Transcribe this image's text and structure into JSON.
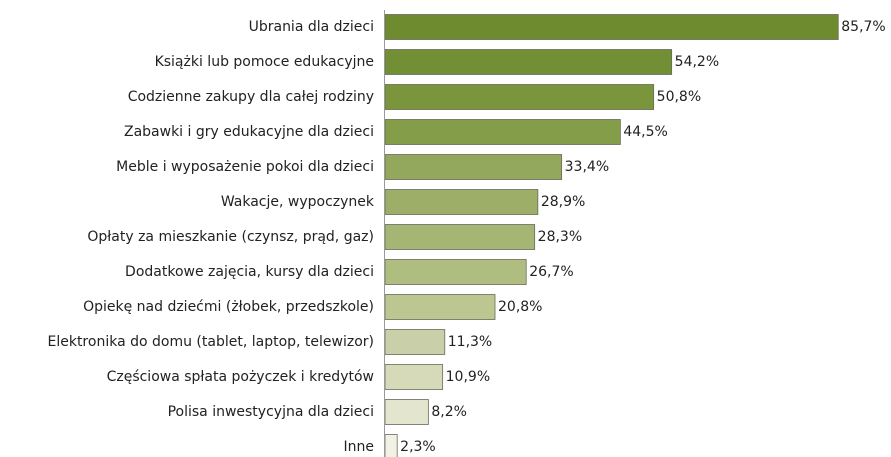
{
  "chart_data": {
    "type": "bar",
    "orientation": "horizontal",
    "categories": [
      "Ubrania dla dzieci",
      "Książki lub pomoce edukacyjne",
      "Codzienne zakupy dla całej rodziny",
      "Zabawki i gry edukacyjne dla dzieci",
      "Meble i wyposażenie pokoi dla dzieci",
      "Wakacje, wypoczynek",
      "Opłaty za mieszkanie (czynsz, prąd, gaz)",
      "Dodatkowe zajęcia, kursy dla dzieci",
      "Opiekę nad dziećmi (żłobek, przedszkole)",
      "Elektronika do domu (tablet, laptop, telewizor)",
      "Częściowa spłata pożyczek i kredytów",
      "Polisa inwestycyjna dla dzieci",
      "Inne"
    ],
    "values": [
      85.7,
      54.2,
      50.8,
      44.5,
      33.4,
      28.9,
      28.3,
      26.7,
      20.8,
      11.3,
      10.9,
      8.2,
      2.3
    ],
    "value_labels": [
      "85,7%",
      "54,2%",
      "50,8%",
      "44,5%",
      "33,4%",
      "28,9%",
      "28,3%",
      "26,7%",
      "20,8%",
      "11,3%",
      "10,9%",
      "8,2%",
      "2,3%"
    ],
    "colors": [
      "#6e8b30",
      "#738f35",
      "#7a953c",
      "#849d48",
      "#93a85c",
      "#9cae67",
      "#a5b573",
      "#afbd80",
      "#bcc690",
      "#c9cfa8",
      "#d6dab9",
      "#e3e5cf",
      "#f1f1e6"
    ],
    "xlim": [
      0,
      90
    ]
  }
}
